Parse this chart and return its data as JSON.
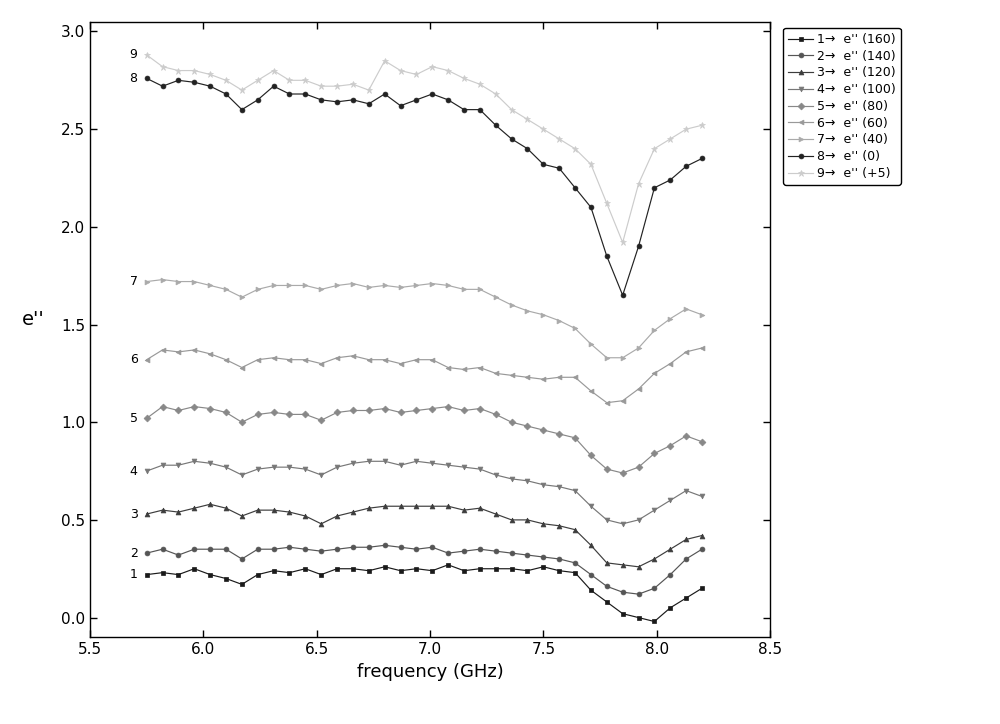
{
  "xlabel": "frequency (GHz)",
  "ylabel": "e''",
  "xlim": [
    5.5,
    8.5
  ],
  "ylim": [
    -0.1,
    3.05
  ],
  "xticks": [
    5.5,
    6.0,
    6.5,
    7.0,
    7.5,
    8.0,
    8.5
  ],
  "yticks": [
    0.0,
    0.5,
    1.0,
    1.5,
    2.0,
    2.5,
    3.0
  ],
  "legend_labels": [
    "1→  e'' (160)",
    "2→  e'' (140)",
    "3→  e'' (120)",
    "4→  e'' (100)",
    "5→  e'' (80)",
    "6→  e'' (60)",
    "7→  e'' (40)",
    "8→  e'' (0)",
    "9→  e'' (+5)"
  ],
  "series": {
    "freq": [
      5.75,
      5.82,
      5.89,
      5.96,
      6.03,
      6.1,
      6.17,
      6.24,
      6.31,
      6.38,
      6.45,
      6.52,
      6.59,
      6.66,
      6.73,
      6.8,
      6.87,
      6.94,
      7.01,
      7.08,
      7.15,
      7.22,
      7.29,
      7.36,
      7.43,
      7.5,
      7.57,
      7.64,
      7.71,
      7.78,
      7.85,
      7.92,
      7.99,
      8.06,
      8.13,
      8.2
    ],
    "s1": [
      0.22,
      0.23,
      0.22,
      0.25,
      0.22,
      0.2,
      0.17,
      0.22,
      0.24,
      0.23,
      0.25,
      0.22,
      0.25,
      0.25,
      0.24,
      0.26,
      0.24,
      0.25,
      0.24,
      0.27,
      0.24,
      0.25,
      0.25,
      0.25,
      0.24,
      0.26,
      0.24,
      0.23,
      0.14,
      0.08,
      0.02,
      0.0,
      -0.02,
      0.05,
      0.1,
      0.15
    ],
    "s2": [
      0.33,
      0.35,
      0.32,
      0.35,
      0.35,
      0.35,
      0.3,
      0.35,
      0.35,
      0.36,
      0.35,
      0.34,
      0.35,
      0.36,
      0.36,
      0.37,
      0.36,
      0.35,
      0.36,
      0.33,
      0.34,
      0.35,
      0.34,
      0.33,
      0.32,
      0.31,
      0.3,
      0.28,
      0.22,
      0.16,
      0.13,
      0.12,
      0.15,
      0.22,
      0.3,
      0.35
    ],
    "s3": [
      0.53,
      0.55,
      0.54,
      0.56,
      0.58,
      0.56,
      0.52,
      0.55,
      0.55,
      0.54,
      0.52,
      0.48,
      0.52,
      0.54,
      0.56,
      0.57,
      0.57,
      0.57,
      0.57,
      0.57,
      0.55,
      0.56,
      0.53,
      0.5,
      0.5,
      0.48,
      0.47,
      0.45,
      0.37,
      0.28,
      0.27,
      0.26,
      0.3,
      0.35,
      0.4,
      0.42
    ],
    "s4": [
      0.75,
      0.78,
      0.78,
      0.8,
      0.79,
      0.77,
      0.73,
      0.76,
      0.77,
      0.77,
      0.76,
      0.73,
      0.77,
      0.79,
      0.8,
      0.8,
      0.78,
      0.8,
      0.79,
      0.78,
      0.77,
      0.76,
      0.73,
      0.71,
      0.7,
      0.68,
      0.67,
      0.65,
      0.57,
      0.5,
      0.48,
      0.5,
      0.55,
      0.6,
      0.65,
      0.62
    ],
    "s5": [
      1.02,
      1.08,
      1.06,
      1.08,
      1.07,
      1.05,
      1.0,
      1.04,
      1.05,
      1.04,
      1.04,
      1.01,
      1.05,
      1.06,
      1.06,
      1.07,
      1.05,
      1.06,
      1.07,
      1.08,
      1.06,
      1.07,
      1.04,
      1.0,
      0.98,
      0.96,
      0.94,
      0.92,
      0.83,
      0.76,
      0.74,
      0.77,
      0.84,
      0.88,
      0.93,
      0.9
    ],
    "s6": [
      1.32,
      1.37,
      1.36,
      1.37,
      1.35,
      1.32,
      1.28,
      1.32,
      1.33,
      1.32,
      1.32,
      1.3,
      1.33,
      1.34,
      1.32,
      1.32,
      1.3,
      1.32,
      1.32,
      1.28,
      1.27,
      1.28,
      1.25,
      1.24,
      1.23,
      1.22,
      1.23,
      1.23,
      1.16,
      1.1,
      1.11,
      1.17,
      1.25,
      1.3,
      1.36,
      1.38
    ],
    "s7": [
      1.72,
      1.73,
      1.72,
      1.72,
      1.7,
      1.68,
      1.64,
      1.68,
      1.7,
      1.7,
      1.7,
      1.68,
      1.7,
      1.71,
      1.69,
      1.7,
      1.69,
      1.7,
      1.71,
      1.7,
      1.68,
      1.68,
      1.64,
      1.6,
      1.57,
      1.55,
      1.52,
      1.48,
      1.4,
      1.33,
      1.33,
      1.38,
      1.47,
      1.53,
      1.58,
      1.55
    ],
    "s8": [
      2.76,
      2.72,
      2.75,
      2.74,
      2.72,
      2.68,
      2.6,
      2.65,
      2.72,
      2.68,
      2.68,
      2.65,
      2.64,
      2.65,
      2.63,
      2.68,
      2.62,
      2.65,
      2.68,
      2.65,
      2.6,
      2.6,
      2.52,
      2.45,
      2.4,
      2.32,
      2.3,
      2.2,
      2.1,
      1.85,
      1.65,
      1.9,
      2.2,
      2.24,
      2.31,
      2.35
    ],
    "s9": [
      2.88,
      2.82,
      2.8,
      2.8,
      2.78,
      2.75,
      2.7,
      2.75,
      2.8,
      2.75,
      2.75,
      2.72,
      2.72,
      2.73,
      2.7,
      2.85,
      2.8,
      2.78,
      2.82,
      2.8,
      2.76,
      2.73,
      2.68,
      2.6,
      2.55,
      2.5,
      2.45,
      2.4,
      2.32,
      2.12,
      1.92,
      2.22,
      2.4,
      2.45,
      2.5,
      2.52
    ]
  },
  "colors": [
    "#1a1a1a",
    "#555555",
    "#3d3d3d",
    "#777777",
    "#888888",
    "#999999",
    "#aaaaaa",
    "#222222",
    "#cccccc"
  ],
  "markers": [
    "s",
    "o",
    "^",
    "v",
    "D",
    "<",
    ">",
    "o",
    "*"
  ],
  "markersizes": [
    3.5,
    3.5,
    3.5,
    3.5,
    3.5,
    3.5,
    3.5,
    3.5,
    5
  ],
  "number_labels": [
    "1",
    "2",
    "3",
    "4",
    "5",
    "6",
    "7",
    "8",
    "9"
  ],
  "figsize": [
    10.0,
    7.24
  ],
  "dpi": 100
}
